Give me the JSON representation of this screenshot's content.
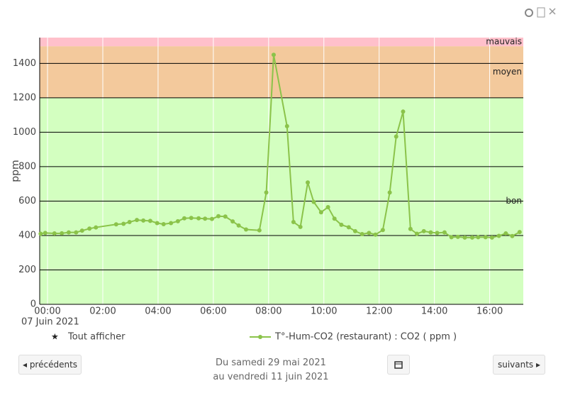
{
  "chart_data": {
    "type": "line",
    "ylabel": "ppm",
    "date_label": "07 Juin 2021",
    "xlim": [
      -17,
      1033
    ],
    "ylim": [
      0,
      1550
    ],
    "xticks": [
      {
        "value": 0,
        "label": "00:00"
      },
      {
        "value": 120,
        "label": "02:00"
      },
      {
        "value": 240,
        "label": "04:00"
      },
      {
        "value": 360,
        "label": "06:00"
      },
      {
        "value": 480,
        "label": "08:00"
      },
      {
        "value": 600,
        "label": "10:00"
      },
      {
        "value": 720,
        "label": "12:00"
      },
      {
        "value": 840,
        "label": "14:00"
      },
      {
        "value": 960,
        "label": "16:00"
      }
    ],
    "yticks": [
      0,
      200,
      400,
      600,
      800,
      1000,
      1200,
      1400
    ],
    "bands": [
      {
        "name": "bon",
        "from": 0,
        "to": 1200,
        "color": "#d3ffc0"
      },
      {
        "name": "moyen",
        "from": 1200,
        "to": 1500,
        "color": "#f3c99c"
      },
      {
        "name": "mauvais",
        "from": 1500,
        "to": 1550,
        "color": "#ffc0cb"
      }
    ],
    "show_all": "Tout afficher",
    "series": [
      {
        "name": "T°-Hum-CO2 (restaurant) : CO2 ( ppm )",
        "color": "#8bc34a",
        "x": [
          -15,
          -5,
          15,
          31,
          46,
          62,
          75,
          91,
          105,
          149,
          165,
          178,
          194,
          208,
          223,
          238,
          252,
          268,
          283,
          297,
          312,
          328,
          342,
          357,
          371,
          386,
          402,
          415,
          431,
          460,
          475,
          491,
          520,
          534,
          549,
          565,
          578,
          594,
          609,
          623,
          638,
          654,
          668,
          683,
          698,
          712,
          728,
          743,
          757,
          772,
          788,
          802,
          817,
          832,
          846,
          862,
          877,
          891,
          906,
          922,
          935,
          951,
          965,
          980,
          995,
          1009,
          1025
        ],
        "values": [
          410,
          415,
          412,
          413,
          418,
          418,
          428,
          440,
          447,
          465,
          468,
          478,
          490,
          487,
          485,
          472,
          466,
          472,
          483,
          500,
          502,
          500,
          498,
          496,
          512,
          510,
          482,
          458,
          435,
          430,
          650,
          1450,
          1035,
          478,
          450,
          708,
          595,
          535,
          565,
          498,
          462,
          448,
          425,
          408,
          415,
          405,
          432,
          650,
          975,
          1120,
          438,
          410,
          425,
          418,
          415,
          418,
          390,
          392,
          388,
          388,
          390,
          390,
          388,
          398,
          412,
          397,
          420
        ]
      }
    ]
  },
  "nav": {
    "prev": "précédents",
    "next": "suivants",
    "from": "Du samedi 29 mai 2021",
    "to": "au vendredi 11 juin 2021"
  }
}
